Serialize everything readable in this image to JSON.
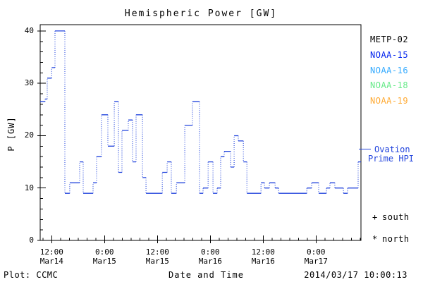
{
  "title": "Hemispheric Power [GW]",
  "axes": {
    "y_label": "P [GW]",
    "x_label": "Date and Time",
    "y_ticks": [
      0,
      10,
      20,
      30,
      40
    ],
    "x_ticks": [
      {
        "t": 12,
        "time": "12:00",
        "date": "Mar14"
      },
      {
        "t": 24,
        "time": "0:00",
        "date": "Mar15"
      },
      {
        "t": 36,
        "time": "12:00",
        "date": "Mar15"
      },
      {
        "t": 48,
        "time": "0:00",
        "date": "Mar16"
      },
      {
        "t": 60,
        "time": "12:00",
        "date": "Mar16"
      },
      {
        "t": 72,
        "time": "0:00",
        "date": "Mar17"
      }
    ]
  },
  "legend": {
    "satellites": [
      {
        "label": "METP-02",
        "color": "#000000"
      },
      {
        "label": "NOAA-15",
        "color": "#0022ee"
      },
      {
        "label": "NOAA-16",
        "color": "#33aaff"
      },
      {
        "label": "NOAA-18",
        "color": "#66ea88"
      },
      {
        "label": "NOAA-19",
        "color": "#ffaa33"
      }
    ],
    "model": {
      "line1": "Ovation",
      "line2": "Prime HPI",
      "color": "#2244dd"
    },
    "markers": [
      {
        "symbol": "+",
        "label": "south"
      },
      {
        "symbol": "*",
        "label": "north"
      }
    ]
  },
  "footer": {
    "credit": "Plot: CCMC",
    "timestamp": "2014/03/17 10:00:13"
  },
  "chart_data": {
    "type": "line",
    "style": "step-post, solid horizontals with dotted vertical connectors",
    "title": "Hemispheric Power [GW]",
    "xlabel": "Date and Time",
    "ylabel": "P [GW]",
    "ylim": [
      0,
      41.2
    ],
    "x_unit": "hours since 2014-03-14 00:00 UT",
    "xlim": [
      9.4,
      82.2
    ],
    "grid": false,
    "legend_position": "right",
    "legend_entries": [
      "METP-02",
      "NOAA-15",
      "NOAA-16",
      "NOAA-18",
      "NOAA-19",
      "Ovation Prime HPI",
      "+ south",
      "* north"
    ],
    "series": [
      {
        "name": "Ovation Prime HPI",
        "color": "#2244dd",
        "t_end": 82.2,
        "step_t": [
          9.4,
          10.5,
          11.0,
          12.0,
          12.75,
          15.0,
          16.1,
          18.35,
          19.15,
          21.4,
          22.2,
          23.3,
          24.75,
          26.2,
          27.15,
          27.95,
          29.4,
          30.35,
          31.15,
          32.6,
          33.4,
          37.1,
          38.2,
          39.15,
          40.3,
          42.2,
          43.95,
          45.55,
          46.35,
          47.5,
          48.6,
          49.55,
          50.35,
          51.15,
          52.6,
          53.4,
          54.35,
          55.5,
          56.3,
          59.5,
          60.3,
          61.4,
          62.7,
          63.5,
          69.9,
          71.0,
          72.6,
          74.35,
          75.15,
          76.25,
          78.2,
          79.15,
          81.55
        ],
        "step_gw": [
          26.5,
          27,
          31,
          33,
          40,
          9,
          11,
          15,
          9,
          11,
          16,
          24,
          18,
          26.5,
          13,
          21,
          23,
          15,
          24,
          12,
          9,
          13,
          15,
          9,
          11,
          22,
          26.5,
          9,
          10,
          15,
          9,
          10,
          16,
          17,
          14,
          20,
          19,
          15,
          9,
          11,
          10,
          11,
          10,
          9,
          10,
          11,
          9,
          10,
          11,
          10,
          9,
          10,
          15
        ]
      }
    ]
  }
}
